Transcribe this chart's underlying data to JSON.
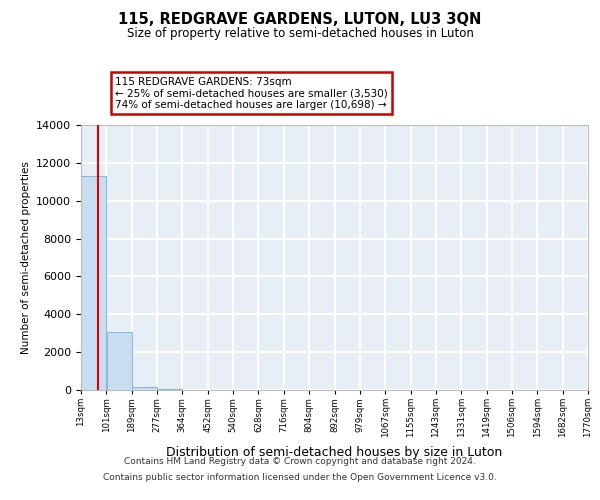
{
  "title": "115, REDGRAVE GARDENS, LUTON, LU3 3QN",
  "subtitle": "Size of property relative to semi-detached houses in Luton",
  "xlabel": "Distribution of semi-detached houses by size in Luton",
  "ylabel": "Number of semi-detached properties",
  "property_size": 73,
  "annotation_line1": "115 REDGRAVE GARDENS: 73sqm",
  "annotation_line2": "← 25% of semi-detached houses are smaller (3,530)",
  "annotation_line3": "74% of semi-detached houses are larger (10,698) →",
  "bar_color": "#c8ddf0",
  "bar_edge_color": "#7aafd4",
  "property_line_color": "#dd0000",
  "bin_edges": [
    13,
    101,
    189,
    277,
    364,
    452,
    540,
    628,
    716,
    804,
    892,
    979,
    1067,
    1155,
    1243,
    1331,
    1419,
    1506,
    1594,
    1682,
    1770
  ],
  "bin_labels": [
    "13sqm",
    "101sqm",
    "189sqm",
    "277sqm",
    "364sqm",
    "452sqm",
    "540sqm",
    "628sqm",
    "716sqm",
    "804sqm",
    "892sqm",
    "979sqm",
    "1067sqm",
    "1155sqm",
    "1243sqm",
    "1331sqm",
    "1419sqm",
    "1506sqm",
    "1594sqm",
    "1682sqm",
    "1770sqm"
  ],
  "bar_heights": [
    11300,
    3050,
    170,
    50,
    20,
    10,
    5,
    3,
    2,
    2,
    1,
    1,
    1,
    1,
    1,
    0,
    0,
    0,
    0,
    0
  ],
  "ylim": [
    0,
    14000
  ],
  "yticks": [
    0,
    2000,
    4000,
    6000,
    8000,
    10000,
    12000,
    14000
  ],
  "footer_line1": "Contains HM Land Registry data © Crown copyright and database right 2024.",
  "footer_line2": "Contains public sector information licensed under the Open Government Licence v3.0.",
  "background_color": "#e8eef5",
  "grid_color": "#ffffff"
}
